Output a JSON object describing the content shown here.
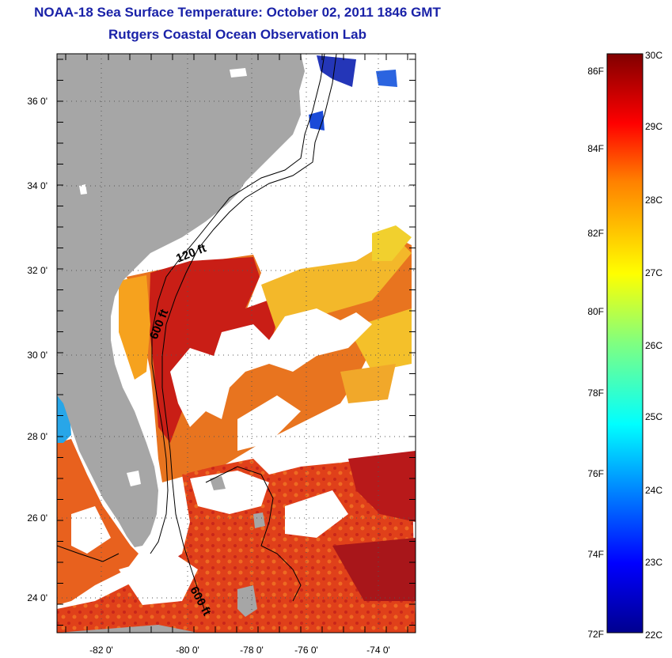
{
  "title_line1": "NOAA-18 Sea Surface Temperature:  October 02, 2011 1846 GMT",
  "title_line2": "Rutgers Coastal Ocean Observation Lab",
  "map": {
    "lat_labels": [
      "36 0'",
      "34 0'",
      "32 0'",
      "30 0'",
      "28 0'",
      "26 0'",
      "24 0'"
    ],
    "lon_labels": [
      "-82 0'",
      "-80 0'",
      "-78 0'",
      "-76 0'",
      "-74 0'"
    ],
    "contour_labels": [
      "120 ft",
      "600 ft",
      "600 ft"
    ],
    "colors": {
      "land": "#a6a6a6",
      "cloud": "#ffffff",
      "contour": "#000000"
    }
  },
  "colorbar": {
    "fahrenheit_labels": [
      "86F",
      "84F",
      "82F",
      "80F",
      "78F",
      "76F",
      "74F",
      "72F"
    ],
    "celsius_labels": [
      "30C",
      "29C",
      "28C",
      "27C",
      "26C",
      "25C",
      "24C",
      "23C",
      "22C"
    ],
    "range_c": [
      22,
      30
    ],
    "colormap": "jet",
    "colors": [
      "#00008f",
      "#0000ff",
      "#0080ff",
      "#00ffff",
      "#80ff80",
      "#ffff00",
      "#ff8000",
      "#ff0000",
      "#800000"
    ]
  }
}
